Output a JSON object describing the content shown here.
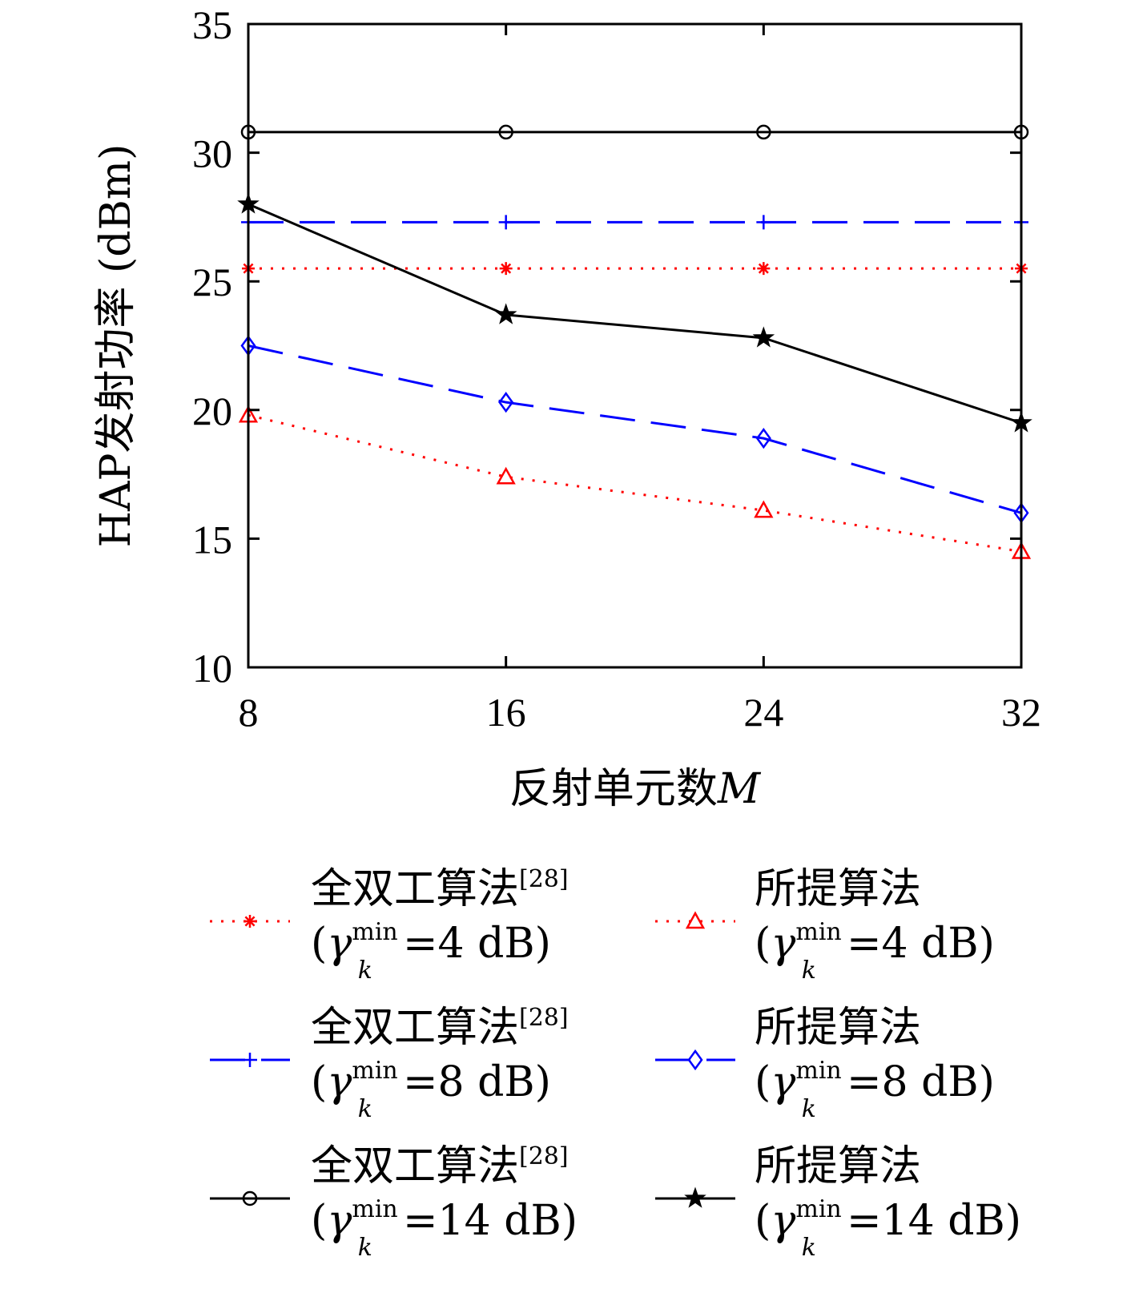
{
  "chart_data": {
    "type": "line",
    "title": "",
    "xlabel": "反射单元数",
    "xlabel_var": "M",
    "ylabel": "HAP发射功率 (dBm)",
    "x": [
      8,
      16,
      24,
      32
    ],
    "xlim": [
      8,
      32
    ],
    "ylim": [
      10,
      35
    ],
    "xticks": [
      "8",
      "16",
      "24",
      "32"
    ],
    "yticks": [
      "10",
      "15",
      "20",
      "25",
      "30",
      "35"
    ],
    "grid": false,
    "legend_placement": "below",
    "series": [
      {
        "name_main": "全双工算法",
        "name_ref": "[28]",
        "name_gamma": "γ",
        "name_sup": "min",
        "name_sub": "k",
        "name_val": "=4 dB",
        "values": [
          25.5,
          25.5,
          25.5,
          25.5
        ],
        "color": "#ff0000",
        "dash": "dotted",
        "marker": "asterisk"
      },
      {
        "name_main": "全双工算法",
        "name_ref": "[28]",
        "name_gamma": "γ",
        "name_sup": "min",
        "name_sub": "k",
        "name_val": "=8 dB",
        "values": [
          27.3,
          27.3,
          27.3,
          27.3
        ],
        "color": "#0000ff",
        "dash": "dashed",
        "marker": "plus"
      },
      {
        "name_main": "全双工算法",
        "name_ref": "[28]",
        "name_gamma": "γ",
        "name_sup": "min",
        "name_sub": "k",
        "name_val": "=14 dB",
        "values": [
          30.8,
          30.8,
          30.8,
          30.8
        ],
        "color": "#000000",
        "dash": "solid",
        "marker": "circle"
      },
      {
        "name_main": "所提算法",
        "name_ref": "",
        "name_gamma": "γ",
        "name_sup": "min",
        "name_sub": "k",
        "name_val": "=4 dB",
        "values": [
          19.8,
          17.4,
          16.1,
          14.5
        ],
        "color": "#ff0000",
        "dash": "dotted",
        "marker": "triangle"
      },
      {
        "name_main": "所提算法",
        "name_ref": "",
        "name_gamma": "γ",
        "name_sup": "min",
        "name_sub": "k",
        "name_val": "=8 dB",
        "values": [
          22.5,
          20.3,
          18.9,
          16.0
        ],
        "color": "#0000ff",
        "dash": "dashed",
        "marker": "diamond"
      },
      {
        "name_main": "所提算法",
        "name_ref": "",
        "name_gamma": "γ",
        "name_sup": "min",
        "name_sub": "k",
        "name_val": "=14 dB",
        "values": [
          28.0,
          23.7,
          22.8,
          19.5
        ],
        "color": "#000000",
        "dash": "solid",
        "marker": "star"
      }
    ]
  }
}
